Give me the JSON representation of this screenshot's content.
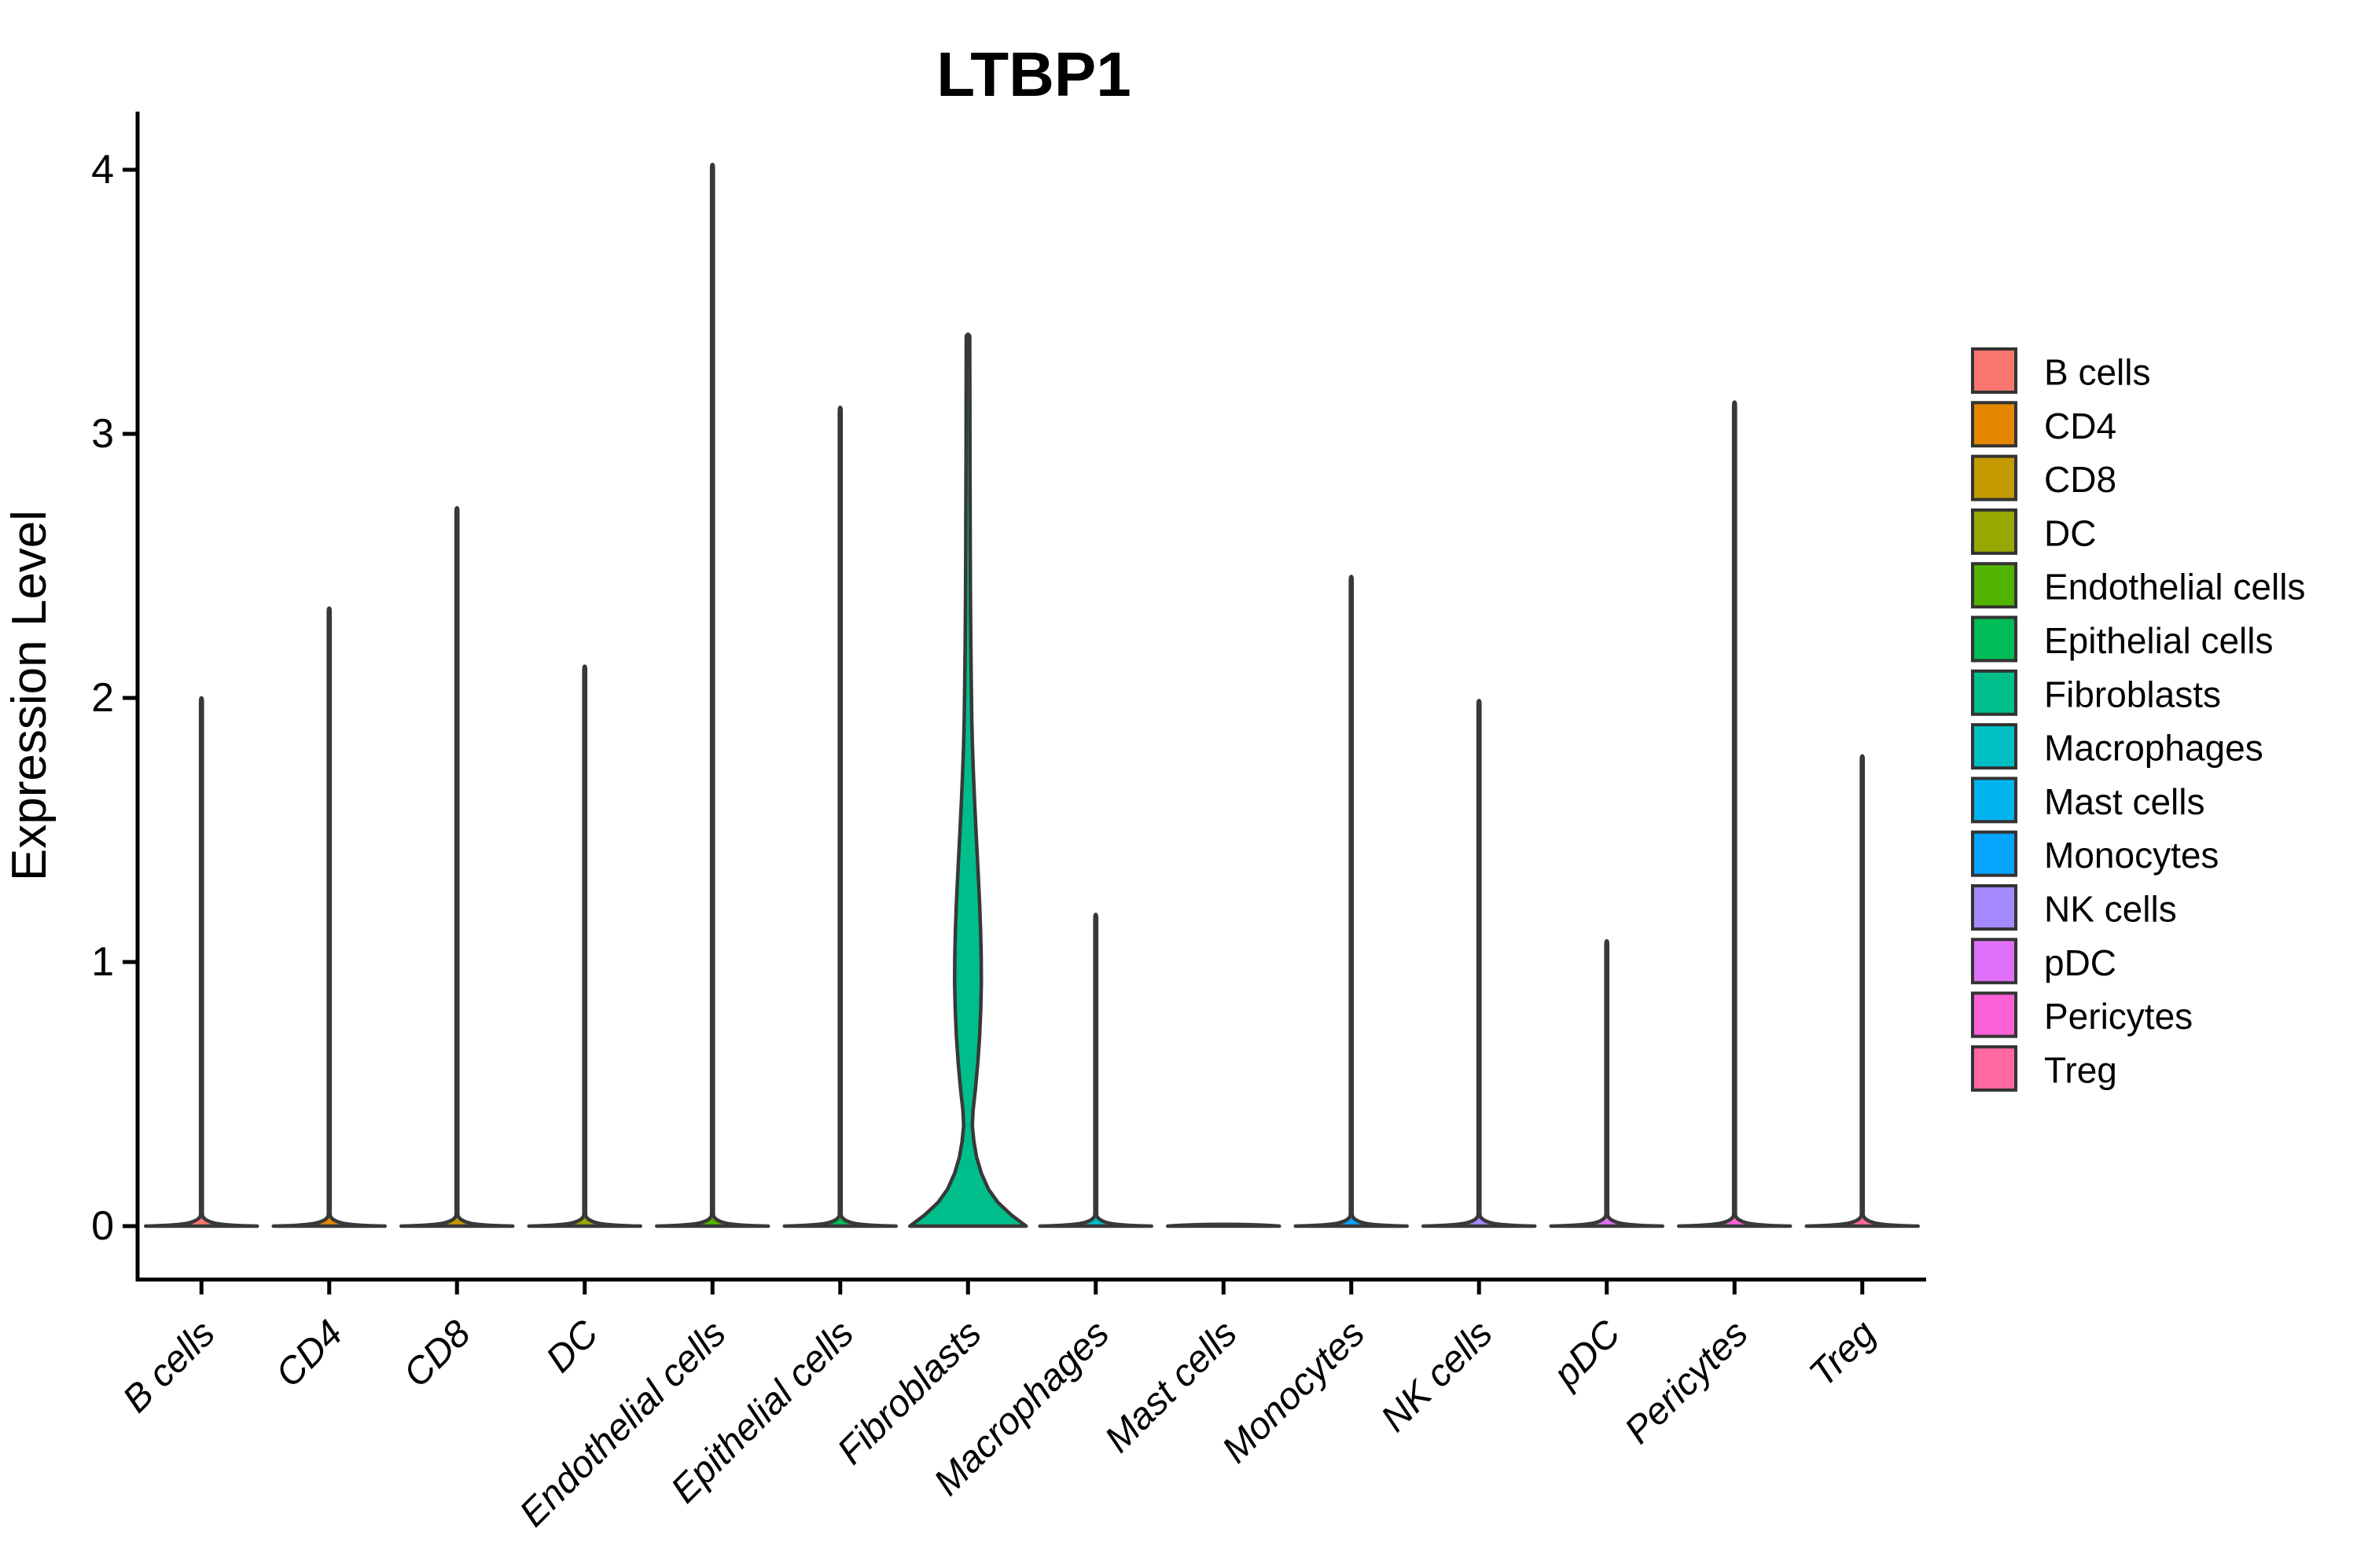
{
  "chart_data": {
    "type": "violin",
    "title": "LTBP1",
    "xlabel": "",
    "ylabel": "Expression Level",
    "y_ticks": [
      0,
      1,
      2,
      3,
      4
    ],
    "ylim": [
      0,
      4.35
    ],
    "grid": false,
    "legend_position": "right",
    "categories": [
      "B cells",
      "CD4",
      "CD8",
      "DC",
      "Endothelial cells",
      "Epithelial cells",
      "Fibroblasts",
      "Macrophages",
      "Mast cells",
      "Monocytes",
      "NK cells",
      "pDC",
      "Pericytes",
      "Treg"
    ],
    "series": [
      {
        "name": "B cells",
        "color": "#F8766D",
        "max_expression": 2.0,
        "density_shape": "spike"
      },
      {
        "name": "CD4",
        "color": "#E58700",
        "max_expression": 2.34,
        "density_shape": "spike"
      },
      {
        "name": "CD8",
        "color": "#C49A00",
        "max_expression": 2.72,
        "density_shape": "spike"
      },
      {
        "name": "DC",
        "color": "#99A800",
        "max_expression": 2.12,
        "density_shape": "spike"
      },
      {
        "name": "Endothelial cells",
        "color": "#53B400",
        "max_expression": 4.02,
        "density_shape": "spike"
      },
      {
        "name": "Epithelial cells",
        "color": "#00BC56",
        "max_expression": 3.1,
        "density_shape": "spike"
      },
      {
        "name": "Fibroblasts",
        "color": "#00BE8C",
        "max_expression": 3.37,
        "density_shape": "violin",
        "violin_profile": [
          [
            0.0,
            74
          ],
          [
            0.04,
            56
          ],
          [
            0.09,
            38
          ],
          [
            0.14,
            26
          ],
          [
            0.2,
            17
          ],
          [
            0.26,
            11
          ],
          [
            0.32,
            7.5
          ],
          [
            0.38,
            5.5
          ],
          [
            0.44,
            6.5
          ],
          [
            0.52,
            9.5
          ],
          [
            0.62,
            12.5
          ],
          [
            0.72,
            14.8
          ],
          [
            0.82,
            16.2
          ],
          [
            0.92,
            17.0
          ],
          [
            1.02,
            16.8
          ],
          [
            1.12,
            16.0
          ],
          [
            1.22,
            14.8
          ],
          [
            1.32,
            13.2
          ],
          [
            1.42,
            11.5
          ],
          [
            1.52,
            9.8
          ],
          [
            1.62,
            8.2
          ],
          [
            1.72,
            6.8
          ],
          [
            1.82,
            5.6
          ],
          [
            1.92,
            4.8
          ],
          [
            2.05,
            4.2
          ],
          [
            2.2,
            3.6
          ],
          [
            2.4,
            3.1
          ],
          [
            2.65,
            2.8
          ],
          [
            2.9,
            2.5
          ],
          [
            3.1,
            2.4
          ],
          [
            3.25,
            2.3
          ],
          [
            3.37,
            2.2
          ]
        ]
      },
      {
        "name": "Macrophages",
        "color": "#00BFC4",
        "max_expression": 1.18,
        "density_shape": "spike"
      },
      {
        "name": "Mast cells",
        "color": "#00B4EF",
        "max_expression": 0.0,
        "density_shape": "flat"
      },
      {
        "name": "Monocytes",
        "color": "#06A4FF",
        "max_expression": 2.46,
        "density_shape": "spike"
      },
      {
        "name": "NK cells",
        "color": "#A58AFF",
        "max_expression": 1.99,
        "density_shape": "spike"
      },
      {
        "name": "pDC",
        "color": "#DF70F8",
        "max_expression": 1.08,
        "density_shape": "spike"
      },
      {
        "name": "Pericytes",
        "color": "#FB61D7",
        "max_expression": 3.12,
        "density_shape": "spike"
      },
      {
        "name": "Treg",
        "color": "#FF68A1",
        "max_expression": 1.78,
        "density_shape": "spike"
      }
    ],
    "legend": {
      "items": [
        {
          "label": "B cells",
          "color": "#F8766D"
        },
        {
          "label": "CD4",
          "color": "#E58700"
        },
        {
          "label": "CD8",
          "color": "#C49A00"
        },
        {
          "label": "DC",
          "color": "#99A800"
        },
        {
          "label": "Endothelial cells",
          "color": "#53B400"
        },
        {
          "label": "Epithelial cells",
          "color": "#00BC56"
        },
        {
          "label": "Fibroblasts",
          "color": "#00BE8C"
        },
        {
          "label": "Macrophages",
          "color": "#00BFC4"
        },
        {
          "label": "Mast cells",
          "color": "#00B4EF"
        },
        {
          "label": "Monocytes",
          "color": "#06A4FF"
        },
        {
          "label": "NK cells",
          "color": "#A58AFF"
        },
        {
          "label": "pDC",
          "color": "#DF70F8"
        },
        {
          "label": "Pericytes",
          "color": "#FB61D7"
        },
        {
          "label": "Treg",
          "color": "#FF68A1"
        }
      ]
    }
  },
  "style": {
    "violin_outline_color": "#383838",
    "axis_color": "#000000",
    "legend_swatch_border": "#333333",
    "background": "#FFFFFF"
  }
}
